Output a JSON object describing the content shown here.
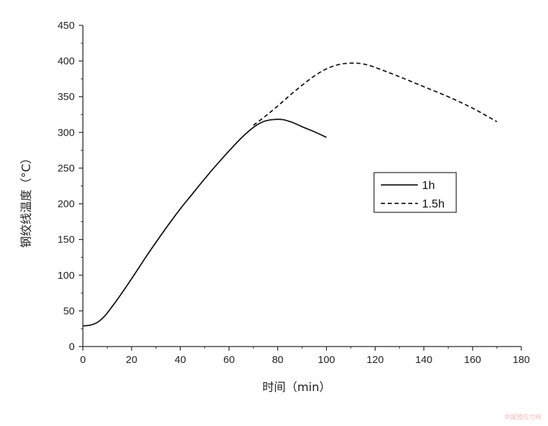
{
  "chart_data": {
    "type": "line",
    "xlabel": "时间（min）",
    "ylabel": "钢绞线温度（°C）",
    "xlim": [
      0,
      180
    ],
    "ylim": [
      0,
      450
    ],
    "x_ticks": [
      0,
      20,
      40,
      60,
      80,
      100,
      120,
      140,
      160,
      180
    ],
    "y_ticks": [
      0,
      50,
      100,
      150,
      200,
      250,
      300,
      350,
      400,
      450
    ],
    "grid": false,
    "legend_position": "center-right",
    "series": [
      {
        "name": "1h",
        "style": "solid",
        "color": "#111111",
        "x": [
          0,
          3,
          6,
          9,
          12,
          15,
          20,
          25,
          30,
          35,
          40,
          45,
          50,
          55,
          60,
          65,
          70,
          74,
          78,
          82,
          86,
          90,
          95,
          100
        ],
        "y": [
          29,
          30,
          34,
          43,
          56,
          70,
          95,
          121,
          146,
          170,
          193,
          214,
          235,
          255,
          274,
          292,
          307,
          315,
          318,
          318,
          314,
          308,
          301,
          293
        ]
      },
      {
        "name": "1.5h",
        "style": "dashed",
        "color": "#111111",
        "x": [
          70,
          75,
          80,
          85,
          90,
          95,
          100,
          105,
          110,
          115,
          120,
          130,
          140,
          150,
          160,
          170
        ],
        "y": [
          310,
          323,
          337,
          352,
          366,
          379,
          389,
          395,
          397,
          396,
          391,
          378,
          364,
          350,
          334,
          315
        ]
      }
    ]
  },
  "watermark": "中国预应力网"
}
